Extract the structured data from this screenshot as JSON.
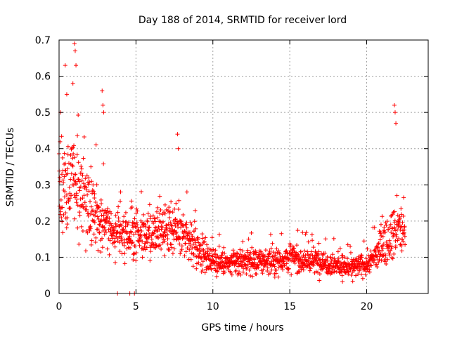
{
  "chart_data": {
    "type": "scatter",
    "title": "Day 188 of 2014, SRMTID for receiver lord",
    "xlabel": "GPS time / hours",
    "ylabel": "SRMTID / TECUs",
    "xlim": [
      0,
      24
    ],
    "ylim": [
      0,
      0.7
    ],
    "x_ticks": [
      0,
      5,
      10,
      15,
      20
    ],
    "x_tick_labels": [
      "0",
      "5",
      "10",
      "15",
      "20"
    ],
    "y_ticks": [
      0,
      0.1,
      0.2,
      0.3,
      0.4,
      0.5,
      0.6,
      0.7
    ],
    "y_tick_labels": [
      "0",
      "0.1",
      "0.2",
      "0.3",
      "0.4",
      "0.5",
      "0.6",
      "0.7"
    ],
    "grid": true,
    "marker": "+",
    "color": "#ff0000",
    "envelope": {
      "description": "approximate typical SRMTID level vs GPS hour",
      "x": [
        0,
        0.5,
        1,
        1.5,
        2,
        2.5,
        3,
        3.5,
        4,
        5,
        6,
        7,
        8,
        8.5,
        9,
        10,
        11,
        12,
        13,
        14,
        15,
        16,
        17,
        18,
        19,
        20,
        20.5,
        21,
        21.5,
        22,
        22.5
      ],
      "y": [
        0.3,
        0.29,
        0.3,
        0.27,
        0.24,
        0.22,
        0.2,
        0.17,
        0.16,
        0.16,
        0.17,
        0.17,
        0.16,
        0.15,
        0.12,
        0.09,
        0.08,
        0.09,
        0.09,
        0.09,
        0.1,
        0.09,
        0.09,
        0.08,
        0.07,
        0.08,
        0.1,
        0.13,
        0.16,
        0.18,
        0.16
      ]
    },
    "spikes": [
      {
        "x": 0.1,
        "y": 0.5
      },
      {
        "x": 0.4,
        "y": 0.63
      },
      {
        "x": 0.5,
        "y": 0.55
      },
      {
        "x": 0.9,
        "y": 0.58
      },
      {
        "x": 1.0,
        "y": 0.69
      },
      {
        "x": 1.05,
        "y": 0.67
      },
      {
        "x": 1.1,
        "y": 0.63
      },
      {
        "x": 2.8,
        "y": 0.56
      },
      {
        "x": 2.85,
        "y": 0.52
      },
      {
        "x": 2.9,
        "y": 0.5
      },
      {
        "x": 7.7,
        "y": 0.44
      },
      {
        "x": 7.75,
        "y": 0.4
      },
      {
        "x": 21.8,
        "y": 0.52
      },
      {
        "x": 21.85,
        "y": 0.5
      },
      {
        "x": 21.9,
        "y": 0.47
      },
      {
        "x": 3.8,
        "y": 0.0
      },
      {
        "x": 4.6,
        "y": 0.0
      },
      {
        "x": 4.9,
        "y": 0.0
      }
    ]
  }
}
